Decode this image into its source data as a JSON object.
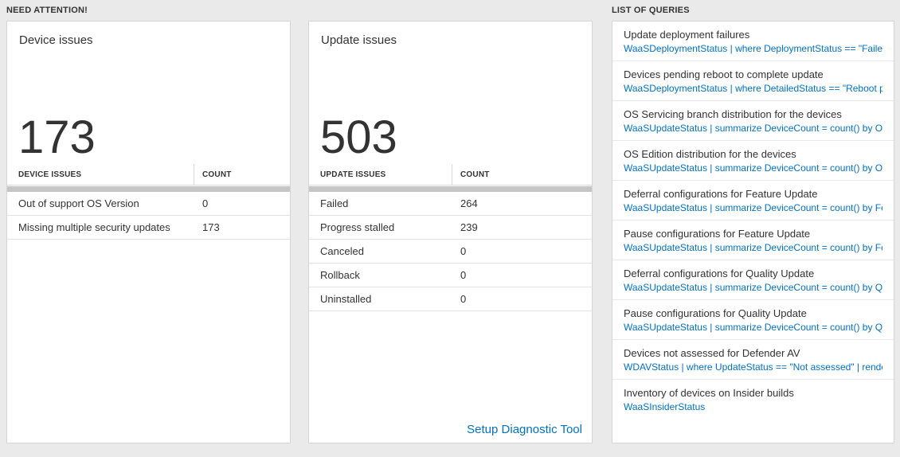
{
  "colors": {
    "background": "#eaeaea",
    "link_blue": "#0072c6",
    "text_dark": "#333333"
  },
  "need_attention": {
    "header": "NEED ATTENTION!",
    "device_card": {
      "title": "Device issues",
      "count": "173",
      "table": {
        "headers": {
          "issue": "DEVICE ISSUES",
          "count": "COUNT"
        },
        "rows": [
          {
            "label": "Out of support OS Version",
            "count": "0"
          },
          {
            "label": "Missing multiple security updates",
            "count": "173"
          }
        ]
      }
    },
    "update_card": {
      "title": "Update issues",
      "count": "503",
      "table": {
        "headers": {
          "issue": "UPDATE ISSUES",
          "count": "COUNT"
        },
        "rows": [
          {
            "label": "Failed",
            "count": "264"
          },
          {
            "label": "Progress stalled",
            "count": "239"
          },
          {
            "label": "Canceled",
            "count": "0"
          },
          {
            "label": "Rollback",
            "count": "0"
          },
          {
            "label": "Uninstalled",
            "count": "0"
          }
        ]
      },
      "footer_link": "Setup Diagnostic Tool"
    }
  },
  "queries": {
    "header": "LIST OF QUERIES",
    "items": [
      {
        "title": "Update deployment failures",
        "query": "WaaSDeploymentStatus | where DeploymentStatus == \"Failed\" |..."
      },
      {
        "title": "Devices pending reboot to complete update",
        "query": "WaaSDeploymentStatus | where DetailedStatus == \"Reboot pend..."
      },
      {
        "title": "OS Servicing branch distribution for the devices",
        "query": "WaaSUpdateStatus | summarize DeviceCount = count() by OSSer..."
      },
      {
        "title": "OS Edition distribution for the devices",
        "query": "WaaSUpdateStatus | summarize DeviceCount = count() by OSEdit..."
      },
      {
        "title": "Deferral configurations for Feature Update",
        "query": "WaaSUpdateStatus | summarize DeviceCount = count() by Featur..."
      },
      {
        "title": "Pause configurations for Feature Update",
        "query": "WaaSUpdateStatus | summarize DeviceCount = count() by Featur..."
      },
      {
        "title": "Deferral configurations for Quality Update",
        "query": "WaaSUpdateStatus | summarize DeviceCount = count() by Qualit..."
      },
      {
        "title": "Pause configurations for Quality Update",
        "query": "WaaSUpdateStatus | summarize DeviceCount = count() by Qualit..."
      },
      {
        "title": "Devices not assessed for Defender AV",
        "query": "WDAVStatus | where UpdateStatus == \"Not assessed\" | render ta..."
      },
      {
        "title": "Inventory of devices on Insider builds",
        "query": "WaaSInsiderStatus"
      }
    ]
  }
}
